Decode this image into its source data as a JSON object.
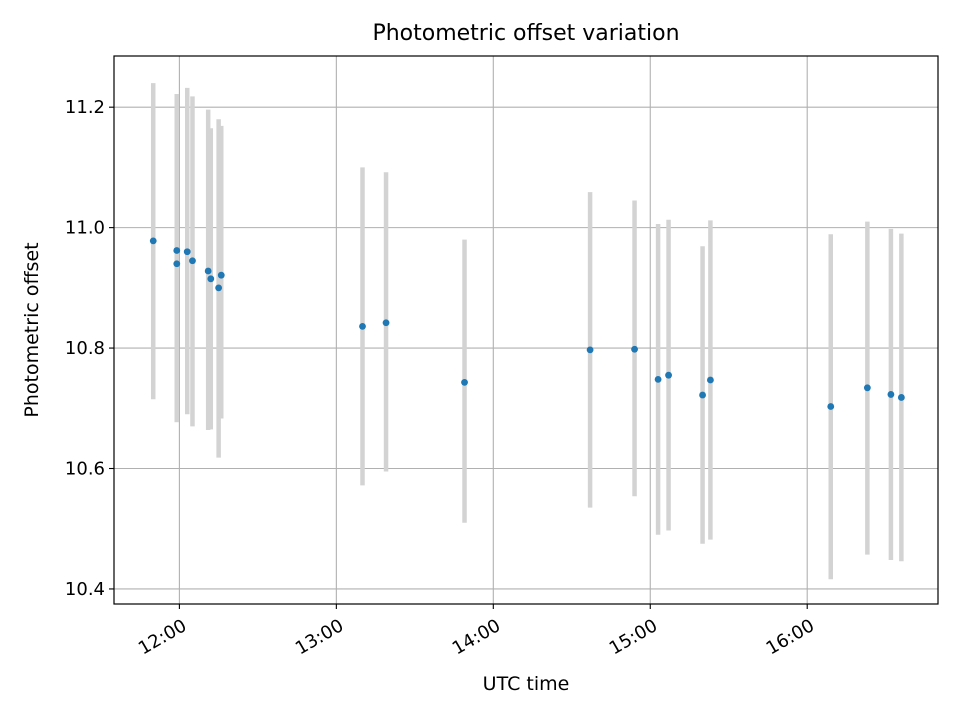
{
  "chart_data": {
    "type": "scatter",
    "title": "Photometric offset variation",
    "xlabel": "UTC time",
    "ylabel": "Photometric offset",
    "x_axis": {
      "kind": "time",
      "range": [
        "11:35",
        "16:50"
      ],
      "ticks": [
        "12:00",
        "13:00",
        "14:00",
        "15:00",
        "16:00"
      ]
    },
    "y_axis": {
      "range": [
        10.375,
        11.285
      ],
      "ticks": [
        "10.4",
        "10.6",
        "10.8",
        "11.0",
        "11.2"
      ]
    },
    "grid": true,
    "legend": "none",
    "error_bar_color": "#d3d3d3",
    "marker_color": "#1f77b4",
    "points": [
      {
        "t": "11:50",
        "y": 10.978,
        "lo": 10.715,
        "hi": 11.24
      },
      {
        "t": "11:59",
        "y": 10.962,
        "lo": 10.677,
        "hi": 11.222
      },
      {
        "t": "11:59",
        "y": 10.94,
        "lo": 10.677,
        "hi": 11.222
      },
      {
        "t": "12:03",
        "y": 10.96,
        "lo": 10.69,
        "hi": 11.232
      },
      {
        "t": "12:05",
        "y": 10.945,
        "lo": 10.67,
        "hi": 11.218
      },
      {
        "t": "12:11",
        "y": 10.928,
        "lo": 10.664,
        "hi": 11.196
      },
      {
        "t": "12:12",
        "y": 10.915,
        "lo": 10.665,
        "hi": 11.165
      },
      {
        "t": "12:15",
        "y": 10.9,
        "lo": 10.618,
        "hi": 11.18
      },
      {
        "t": "12:16",
        "y": 10.921,
        "lo": 10.683,
        "hi": 11.169
      },
      {
        "t": "13:10",
        "y": 10.836,
        "lo": 10.572,
        "hi": 11.1
      },
      {
        "t": "13:19",
        "y": 10.842,
        "lo": 10.595,
        "hi": 11.092
      },
      {
        "t": "13:49",
        "y": 10.743,
        "lo": 10.51,
        "hi": 10.98
      },
      {
        "t": "14:37",
        "y": 10.797,
        "lo": 10.535,
        "hi": 11.059
      },
      {
        "t": "14:54",
        "y": 10.798,
        "lo": 10.554,
        "hi": 11.045
      },
      {
        "t": "15:03",
        "y": 10.748,
        "lo": 10.49,
        "hi": 11.006
      },
      {
        "t": "15:07",
        "y": 10.755,
        "lo": 10.497,
        "hi": 11.013
      },
      {
        "t": "15:20",
        "y": 10.722,
        "lo": 10.475,
        "hi": 10.969
      },
      {
        "t": "15:23",
        "y": 10.747,
        "lo": 10.482,
        "hi": 11.012
      },
      {
        "t": "16:09",
        "y": 10.703,
        "lo": 10.416,
        "hi": 10.989
      },
      {
        "t": "16:23",
        "y": 10.734,
        "lo": 10.457,
        "hi": 11.01
      },
      {
        "t": "16:32",
        "y": 10.723,
        "lo": 10.448,
        "hi": 10.998
      },
      {
        "t": "16:36",
        "y": 10.718,
        "lo": 10.446,
        "hi": 10.99
      }
    ]
  }
}
